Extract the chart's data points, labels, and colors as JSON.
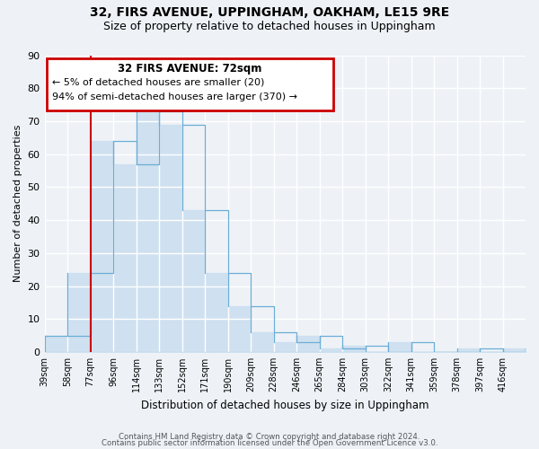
{
  "title": "32, FIRS AVENUE, UPPINGHAM, OAKHAM, LE15 9RE",
  "subtitle": "Size of property relative to detached houses in Uppingham",
  "xlabel": "Distribution of detached houses by size in Uppingham",
  "ylabel": "Number of detached properties",
  "bin_labels": [
    "39sqm",
    "58sqm",
    "77sqm",
    "96sqm",
    "114sqm",
    "133sqm",
    "152sqm",
    "171sqm",
    "190sqm",
    "209sqm",
    "228sqm",
    "246sqm",
    "265sqm",
    "284sqm",
    "303sqm",
    "322sqm",
    "341sqm",
    "359sqm",
    "378sqm",
    "397sqm",
    "416sqm"
  ],
  "bar_values": [
    5,
    24,
    64,
    57,
    73,
    69,
    43,
    24,
    14,
    6,
    3,
    5,
    1,
    2,
    0,
    3,
    0,
    0,
    1,
    0,
    1
  ],
  "bar_color": "#cfe0f0",
  "bar_edge_color": "#6baed6",
  "ylim": [
    0,
    90
  ],
  "yticks": [
    0,
    10,
    20,
    30,
    40,
    50,
    60,
    70,
    80,
    90
  ],
  "vline_x_index": 2,
  "vline_color": "#cc0000",
  "annotation_title": "32 FIRS AVENUE: 72sqm",
  "annotation_line1": "← 5% of detached houses are smaller (20)",
  "annotation_line2": "94% of semi-detached houses are larger (370) →",
  "annotation_box_color": "#cc0000",
  "footer_line1": "Contains HM Land Registry data © Crown copyright and database right 2024.",
  "footer_line2": "Contains public sector information licensed under the Open Government Licence v3.0.",
  "background_color": "#eef2f7",
  "grid_color": "#d0dce8"
}
